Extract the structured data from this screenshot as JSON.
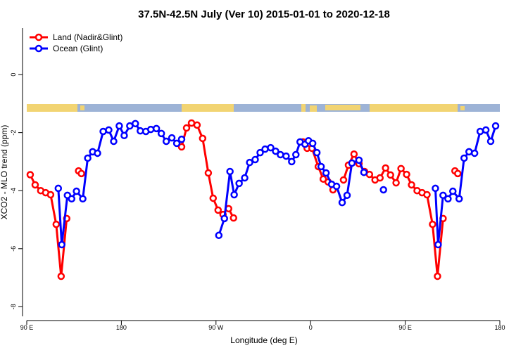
{
  "chart_data": {
    "type": "line",
    "title": "37.5N-42.5N July (Ver 10)   2015-01-01 to 2020-12-18",
    "x_label": "Longitude (deg E)",
    "y_label": "XCO2 - MLO trend (ppm)",
    "xlim": [
      90,
      540
    ],
    "xticks": [
      {
        "value": 90,
        "label": "90 E"
      },
      180,
      {
        "value": 270,
        "label": "90 W"
      },
      {
        "value": 360,
        "label": "0"
      },
      {
        "value": 450,
        "label": "90 E"
      },
      {
        "value": 540,
        "label": "180"
      }
    ],
    "ylim": [
      -8.33,
      1.6
    ],
    "yticks": [
      0,
      -2,
      -4,
      -6,
      -8
    ],
    "legend": "top-left",
    "series": [
      {
        "name": "Land (Nadir&Glint)",
        "color": "#ff0000",
        "x": [
          93.3,
          98,
          103.3,
          108,
          112.7,
          118,
          122.7,
          128,
          null,
          139.3,
          142,
          null,
          237.3,
          242,
          246.7,
          252,
          257.3,
          262.7,
          267.3,
          272,
          276.7,
          null,
          282,
          286.7,
          null,
          352.7,
          356.7,
          361.3,
          367.3,
          372,
          376.7,
          381.3,
          null,
          391.3,
          396,
          401.3,
          406,
          411.3,
          416,
          421.3,
          426,
          431.3,
          436,
          441.3,
          446,
          451.3,
          456,
          461.3,
          466,
          470.7,
          476,
          480.7,
          486,
          null,
          497.3,
          500
        ],
        "values": [
          -3.45,
          -3.8,
          -4.0,
          -4.07,
          -4.14,
          -5.16,
          -6.95,
          -4.96,
          null,
          -3.32,
          -3.41,
          null,
          -2.49,
          -1.84,
          -1.67,
          -1.74,
          -2.2,
          -3.39,
          -4.26,
          -4.67,
          -4.82,
          null,
          -4.62,
          -4.94,
          null,
          -2.32,
          -2.54,
          -2.54,
          -3.17,
          -3.6,
          -3.7,
          -3.97,
          null,
          -3.63,
          -3.12,
          -2.74,
          -3.07,
          -3.34,
          -3.44,
          -3.63,
          -3.56,
          -3.22,
          -3.46,
          -3.73,
          -3.24,
          -3.44,
          -3.8,
          -4.0,
          -4.07,
          -4.14,
          -5.16,
          -6.95,
          -4.96,
          null,
          -3.32,
          -3.41
        ]
      },
      {
        "name": "Ocean (Glint)",
        "color": "#0000ff",
        "x": [
          120,
          123.3,
          128.7,
          132.7,
          137.3,
          143.3,
          148,
          152.7,
          157.3,
          162.7,
          168,
          172.7,
          178,
          182.7,
          188,
          193.3,
          198,
          203.3,
          208,
          213.3,
          218,
          222.7,
          228,
          232.7,
          237.3,
          null,
          272.7,
          278,
          283.3,
          287.3,
          292,
          297.3,
          302,
          307.3,
          312,
          316.7,
          322,
          326.7,
          331.3,
          336.7,
          342,
          346,
          350,
          354.7,
          358,
          362,
          366,
          370,
          374.7,
          380,
          384.7,
          390,
          394.7,
          399.3,
          406,
          410.7,
          null,
          429.3,
          null,
          478.7,
          481.3,
          486,
          490.7,
          495.3,
          501.3,
          506,
          510.7,
          516,
          521.3,
          526.7,
          531.3,
          536
        ],
        "values": [
          -3.92,
          -5.86,
          -4.16,
          -4.28,
          -4.02,
          -4.28,
          -2.88,
          -2.66,
          -2.71,
          -1.96,
          -1.91,
          -2.3,
          -1.77,
          -2.1,
          -1.77,
          -1.69,
          -1.94,
          -1.96,
          -1.89,
          -1.86,
          -2.03,
          -2.3,
          -2.18,
          -2.37,
          -2.23,
          null,
          -5.54,
          -4.96,
          -3.34,
          -4.14,
          -3.75,
          -3.56,
          -3.03,
          -2.93,
          -2.69,
          -2.57,
          -2.52,
          -2.64,
          -2.76,
          -2.81,
          -3.0,
          -2.76,
          -2.32,
          -2.4,
          -2.28,
          -2.37,
          -2.69,
          -3.17,
          -3.39,
          -3.78,
          -3.85,
          -4.41,
          -4.16,
          -3.05,
          -2.95,
          -3.37,
          null,
          -3.97,
          null,
          -3.92,
          -5.86,
          -4.16,
          -4.28,
          -4.02,
          -4.28,
          -2.88,
          -2.66,
          -2.71,
          -1.96,
          -1.91,
          -2.3,
          -1.77
        ]
      }
    ]
  }
}
